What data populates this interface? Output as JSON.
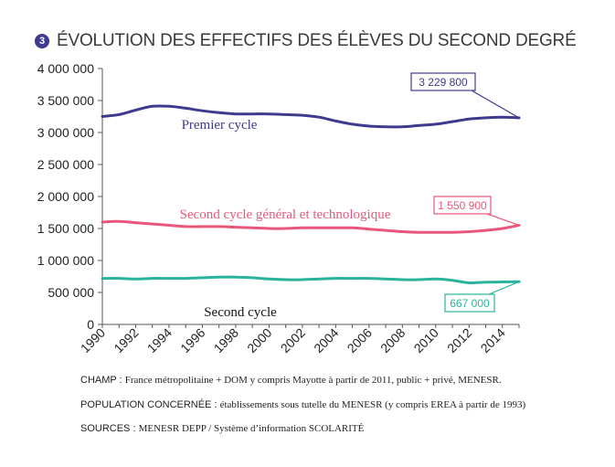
{
  "title": {
    "number": "3",
    "text": "ÉVOLUTION DES EFFECTIFS DES ÉLÈVES DU SECOND DEGRÉ"
  },
  "chart_data": {
    "type": "line",
    "x": [
      1990,
      1991,
      1992,
      1993,
      1994,
      1995,
      1996,
      1997,
      1998,
      1999,
      2000,
      2001,
      2002,
      2003,
      2004,
      2005,
      2006,
      2007,
      2008,
      2009,
      2010,
      2011,
      2012,
      2013,
      2014,
      2015
    ],
    "ylim": [
      0,
      4000000
    ],
    "yticks": [
      0,
      500000,
      1000000,
      1500000,
      2000000,
      2500000,
      3000000,
      3500000,
      4000000
    ],
    "ytick_labels": [
      "0",
      "500 000",
      "1 000 000",
      "1 500 000",
      "2 000 000",
      "2 500 000",
      "3 000 000",
      "3 500 000",
      "4 000 000"
    ],
    "xtick_labels": [
      "1990",
      "1992",
      "1994",
      "1996",
      "1998",
      "2000",
      "2002",
      "2004",
      "2006",
      "2008",
      "2010",
      "2012",
      "2014"
    ],
    "grid": false,
    "series": [
      {
        "name": "Premier cycle",
        "color": "#3d3a8f",
        "values": [
          3250000,
          3280000,
          3350000,
          3410000,
          3410000,
          3380000,
          3340000,
          3310000,
          3290000,
          3290000,
          3290000,
          3280000,
          3270000,
          3240000,
          3180000,
          3130000,
          3100000,
          3090000,
          3090000,
          3110000,
          3130000,
          3170000,
          3210000,
          3230000,
          3240000,
          3229800
        ],
        "annotation": "3 229 800"
      },
      {
        "name": "Second cycle général et technologique",
        "color": "#e8577a",
        "values": [
          1600000,
          1610000,
          1590000,
          1570000,
          1550000,
          1530000,
          1530000,
          1530000,
          1520000,
          1510000,
          1500000,
          1500000,
          1510000,
          1510000,
          1510000,
          1510000,
          1490000,
          1470000,
          1450000,
          1440000,
          1440000,
          1440000,
          1450000,
          1470000,
          1500000,
          1550900
        ],
        "annotation": "1 550 900"
      },
      {
        "name": "Second cycle",
        "color": "#2ab39c",
        "values": [
          720000,
          720000,
          710000,
          720000,
          720000,
          720000,
          730000,
          740000,
          740000,
          730000,
          710000,
          700000,
          700000,
          710000,
          720000,
          720000,
          720000,
          710000,
          700000,
          700000,
          710000,
          690000,
          650000,
          660000,
          665000,
          667000
        ],
        "annotation": "667 000"
      }
    ]
  },
  "footnotes": [
    {
      "label": "CHAMP : ",
      "text": "France métropolitaine + DOM y compris Mayotte à partir de 2011, public + privé, MENESR."
    },
    {
      "label": "POPULATION CONCERNÉE : ",
      "text": "établissements sous tutelle du MENESR  (y compris EREA à partir de 1993)"
    },
    {
      "label": "SOURCES :  ",
      "text": "MENESR DEPP / Système d’information SCOLARITÉ"
    }
  ]
}
